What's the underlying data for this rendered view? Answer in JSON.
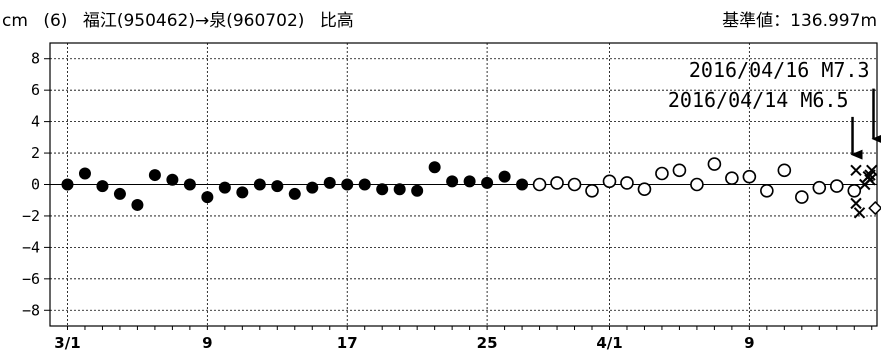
{
  "header": {
    "unit": "cm",
    "station_no": "(6)",
    "route": "福江(950462)→泉(960702)",
    "component": "比高",
    "reference": "基準値：136.997m"
  },
  "chart_data": {
    "type": "scatter",
    "title": "",
    "xlabel": "",
    "ylabel": "cm",
    "ylim": [
      -9,
      9
    ],
    "y_ticks": [
      "8",
      "6",
      "4",
      "2",
      "0",
      "−2",
      "−4",
      "−6",
      "−8"
    ],
    "y_tick_values": [
      8,
      6,
      4,
      2,
      0,
      -2,
      -4,
      -6,
      -8
    ],
    "x_ticks": [
      {
        "label": "3/1",
        "day": 0
      },
      {
        "label": "9",
        "day": 8
      },
      {
        "label": "17",
        "day": 16
      },
      {
        "label": "25",
        "day": 24
      },
      {
        "label": "4/1",
        "day": 31
      },
      {
        "label": "9",
        "day": 39
      }
    ],
    "x_range_days": [
      -1,
      46.3
    ],
    "grid": true,
    "series": [
      {
        "marker": "filled-circle",
        "x": [
          0,
          1,
          2,
          3,
          4,
          5,
          6,
          7,
          8,
          9,
          10,
          11,
          12,
          13,
          14,
          15,
          16,
          17,
          18,
          19,
          20,
          21,
          22,
          23,
          24,
          25,
          26
        ],
        "y": [
          0.0,
          0.7,
          -0.1,
          -0.6,
          -1.3,
          0.6,
          0.3,
          0.0,
          -0.8,
          -0.2,
          -0.5,
          0.0,
          -0.1,
          -0.6,
          -0.2,
          0.1,
          0.0,
          0.0,
          -0.3,
          -0.3,
          -0.4,
          1.1,
          0.2,
          0.2,
          0.1,
          0.5,
          0.0
        ]
      },
      {
        "marker": "open-circle",
        "x": [
          27,
          28,
          29,
          30,
          31,
          32,
          33,
          34,
          35,
          36,
          37,
          38,
          39,
          40,
          41,
          42,
          43,
          44,
          45
        ],
        "y": [
          0.0,
          0.1,
          0.0,
          -0.4,
          0.2,
          0.1,
          -0.3,
          0.7,
          0.9,
          0.0,
          1.3,
          0.4,
          0.5,
          -0.4,
          0.9,
          -0.8,
          -0.2,
          -0.1,
          -0.4
        ]
      },
      {
        "marker": "cross",
        "x": [
          45.1,
          45.1,
          45.3,
          45.6,
          45.8,
          45.9,
          46.0,
          45.9
        ],
        "y": [
          0.9,
          -1.2,
          -1.8,
          0.0,
          0.5,
          0.3,
          0.9,
          0.6
        ]
      },
      {
        "marker": "diamond",
        "x": [
          46.2
        ],
        "y": [
          -1.5
        ]
      }
    ],
    "annotations": [
      {
        "label": "2016/04/16 M7.3",
        "x": 46.1,
        "arrow_top": 6.1,
        "arrow_tip": 2.9
      },
      {
        "label": "2016/04/14 M6.5",
        "x": 44.9,
        "arrow_top": 4.3,
        "arrow_tip": 1.9
      }
    ]
  }
}
